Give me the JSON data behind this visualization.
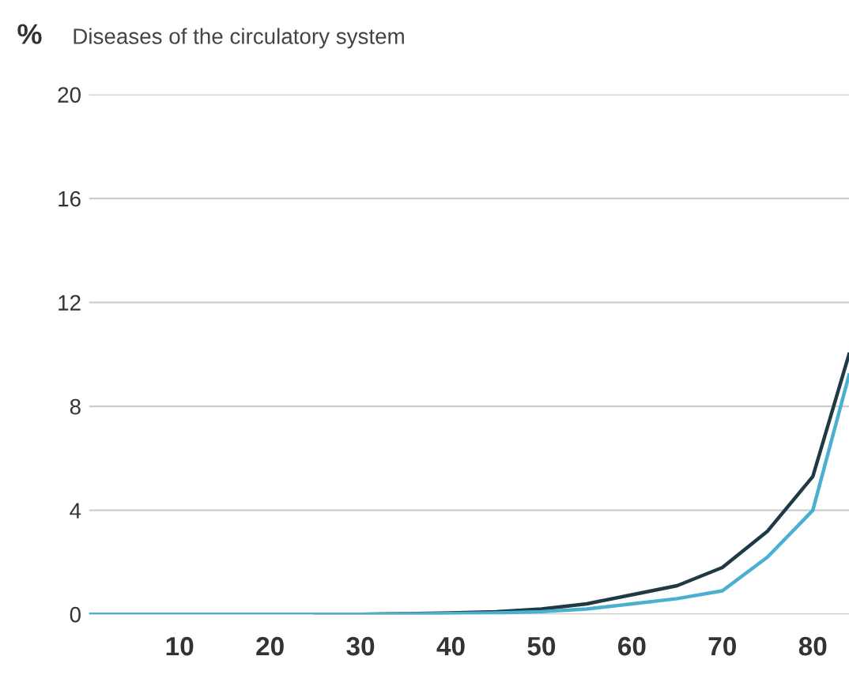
{
  "chart_data": {
    "type": "line",
    "title": "Diseases of the circulatory system",
    "ylabel": "%",
    "x": [
      0,
      5,
      10,
      15,
      20,
      25,
      30,
      35,
      40,
      45,
      50,
      55,
      60,
      65,
      70,
      75,
      80,
      84
    ],
    "series": [
      {
        "color": "#1f3a44",
        "values": [
          null,
          null,
          null,
          null,
          null,
          0,
          0,
          0.02,
          0.05,
          0.1,
          0.2,
          0.4,
          0.75,
          1.1,
          1.8,
          3.2,
          5.3,
          10.0
        ]
      },
      {
        "color": "#4ab0d0",
        "values": [
          0,
          0,
          0,
          0,
          0,
          0,
          0,
          0.01,
          0.03,
          0.05,
          0.1,
          0.2,
          0.4,
          0.6,
          0.9,
          2.2,
          4.0,
          9.2
        ]
      }
    ],
    "xlim": [
      0,
      84
    ],
    "xticks": [
      10,
      20,
      30,
      40,
      50,
      60,
      70,
      80
    ],
    "ylim": [
      0,
      20
    ],
    "yticks": [
      0,
      4,
      8,
      12,
      16,
      20
    ],
    "grid": "y",
    "legend": false,
    "marker": "none",
    "line_style": "solid"
  }
}
